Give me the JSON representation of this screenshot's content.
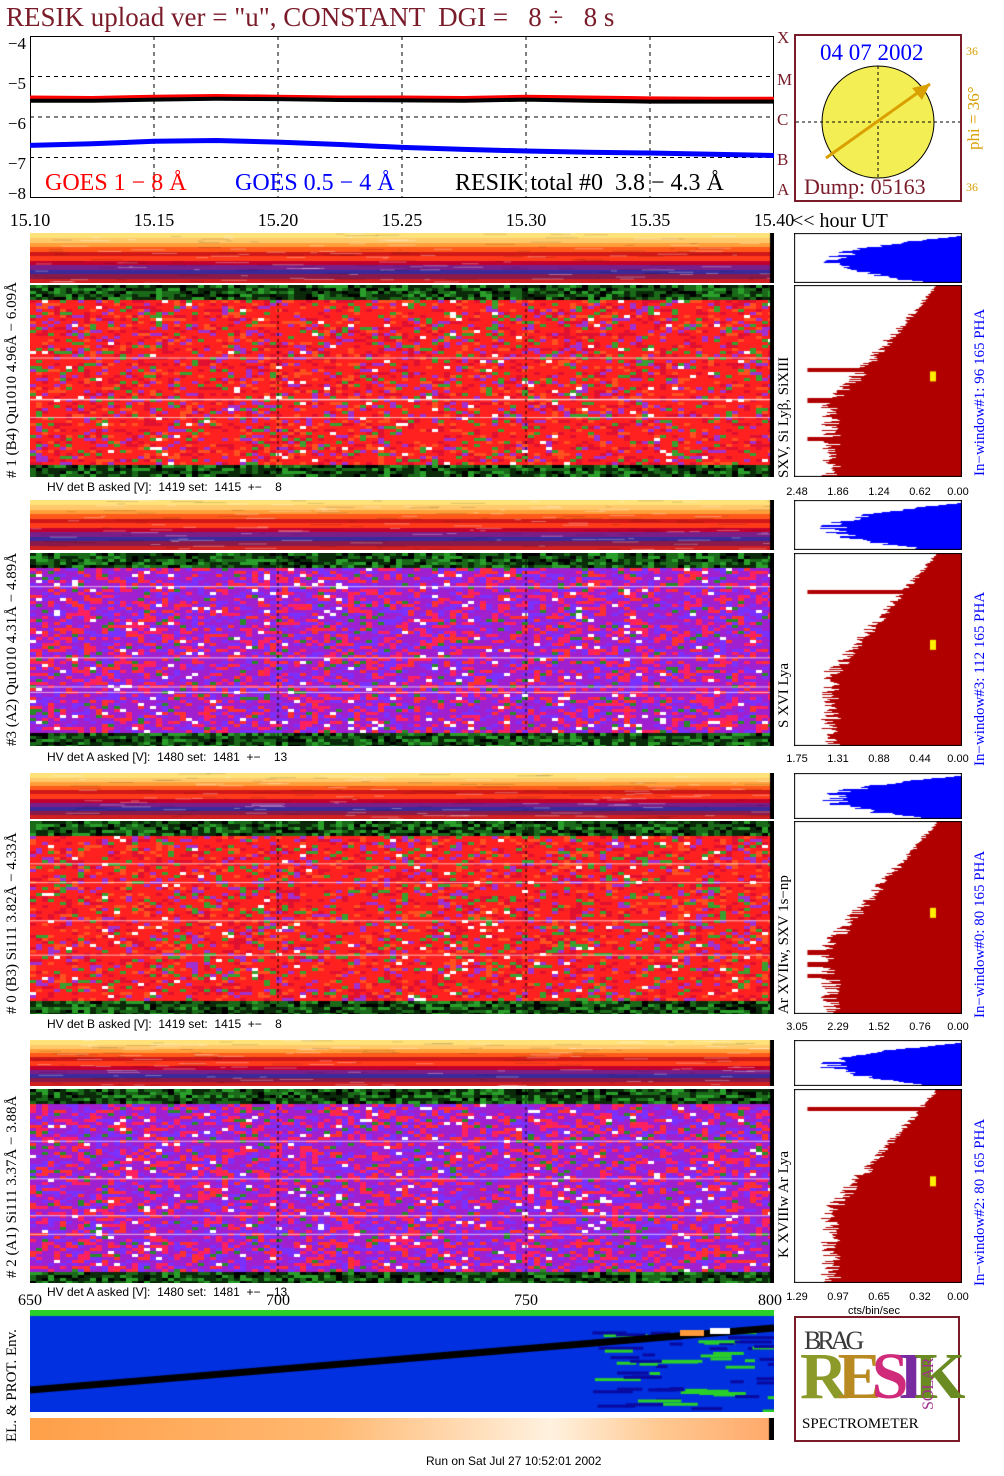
{
  "title": "RESIK upload ver = \"u\", CONSTANT  DGI =   8 ÷   8 s",
  "colors": {
    "maroon": "#7a1b2a",
    "goes_red": "#ff0000",
    "goes_blue": "#0000ff",
    "resik": "#000000",
    "sun": "#f4ee55",
    "sun_arrow": "#d9a000",
    "pha_blue": "#0000ff",
    "pha_red": "#b00000"
  },
  "chart_data": [
    {
      "type": "line",
      "name": "goes-lightcurve",
      "ylim": [
        -8,
        -4
      ],
      "yticks": [
        "−4",
        "−5",
        "−6",
        "−7",
        "−8"
      ],
      "right_axis": [
        "X",
        "M",
        "C",
        "B",
        "A"
      ],
      "x": [
        15.1,
        15.125,
        15.15,
        15.175,
        15.2,
        15.225,
        15.25,
        15.275,
        15.3,
        15.325,
        15.35,
        15.375,
        15.4
      ],
      "series": [
        {
          "name": "GOES 1 − 8 Å",
          "color": "#ff0000",
          "values": [
            -5.52,
            -5.53,
            -5.5,
            -5.48,
            -5.5,
            -5.52,
            -5.52,
            -5.53,
            -5.5,
            -5.52,
            -5.54,
            -5.55,
            -5.55
          ]
        },
        {
          "name": "RESIK total #0  3.8 − 4.3 Å",
          "color": "#000000",
          "values": [
            -5.6,
            -5.6,
            -5.57,
            -5.55,
            -5.56,
            -5.58,
            -5.59,
            -5.6,
            -5.57,
            -5.6,
            -5.62,
            -5.62,
            -5.62
          ]
        },
        {
          "name": "GOES 0.5 − 4 Å",
          "color": "#0000ff",
          "values": [
            -6.7,
            -6.66,
            -6.6,
            -6.58,
            -6.62,
            -6.68,
            -6.75,
            -6.8,
            -6.84,
            -6.87,
            -6.89,
            -6.92,
            -6.95
          ]
        }
      ],
      "legend": [
        "GOES 1 − 8 Å",
        "GOES 0.5 − 4 Å",
        "RESIK total #0  3.8 − 4.3 Å"
      ]
    },
    {
      "type": "heatmap",
      "name": "spectra-time",
      "xticks": [
        "15.10",
        "15.15",
        "15.20",
        "15.25",
        "15.30",
        "15.35",
        "15.40"
      ],
      "xunit": "<< hour UT"
    },
    {
      "type": "bar",
      "name": "pha-histograms",
      "values": [],
      "scales": [
        [
          "2.48",
          "1.86",
          "1.24",
          "0.62",
          "0.00"
        ],
        [
          "1.75",
          "1.31",
          "0.88",
          "0.44",
          "0.00"
        ],
        [
          "3.05",
          "2.29",
          "1.52",
          "0.76",
          "0.00"
        ],
        [
          "1.29",
          "0.97",
          "0.65",
          "0.32",
          "0.00"
        ]
      ],
      "xlabel": "cts/bin/sec"
    },
    {
      "type": "heatmap",
      "name": "environment",
      "xticks": [
        "650",
        "700",
        "750",
        "800"
      ]
    }
  ],
  "sun": {
    "date": "04 07 2002",
    "dump": "Dump: 05163",
    "phi": "phi = 36°",
    "top36": "36",
    "bot36": "36"
  },
  "panels": [
    {
      "label": "# 1 (B4) Qu1010 4.96Å − 6.09Å",
      "line": "SXV, Si Lyβ, SiXIII",
      "window": "In−window#1:  96 165  PHA",
      "hv": "HV det B asked [V]:  1419 set:  1415  +−    8"
    },
    {
      "label": "#3 (A2) Qu1010  4.31Å − 4.89Å",
      "line": "S XVI Lya",
      "window": "In−window#3:  112 165  PHA",
      "hv": "HV det A asked [V]:  1480 set:  1481  +−    13"
    },
    {
      "label": "# 0 (B3) Si111  3.82Å − 4.33Å",
      "line": "Ar XVIIw, SXV 1s−np",
      "window": "In−window#0:  80 165  PHA",
      "hv": "HV det B asked [V]:  1419 set:  1415  +−    8"
    },
    {
      "label": "# 2 (A1) Si111  3.37Å − 3.88Å",
      "line": "K XVIIIw  Ar Lya",
      "window": "In−window#2:  80 165  PHA",
      "hv": "HV det A asked [V]:  1480 set:  1481  +−    13"
    }
  ],
  "env_label": "EL. & PROT. Env.",
  "logo": {
    "top": "BRAG",
    "main": "RESIK",
    "side": "SOLAR",
    "bottom": "SPECTROMETER"
  },
  "footer": "Run on Sat Jul 27 10:52:01 2002"
}
